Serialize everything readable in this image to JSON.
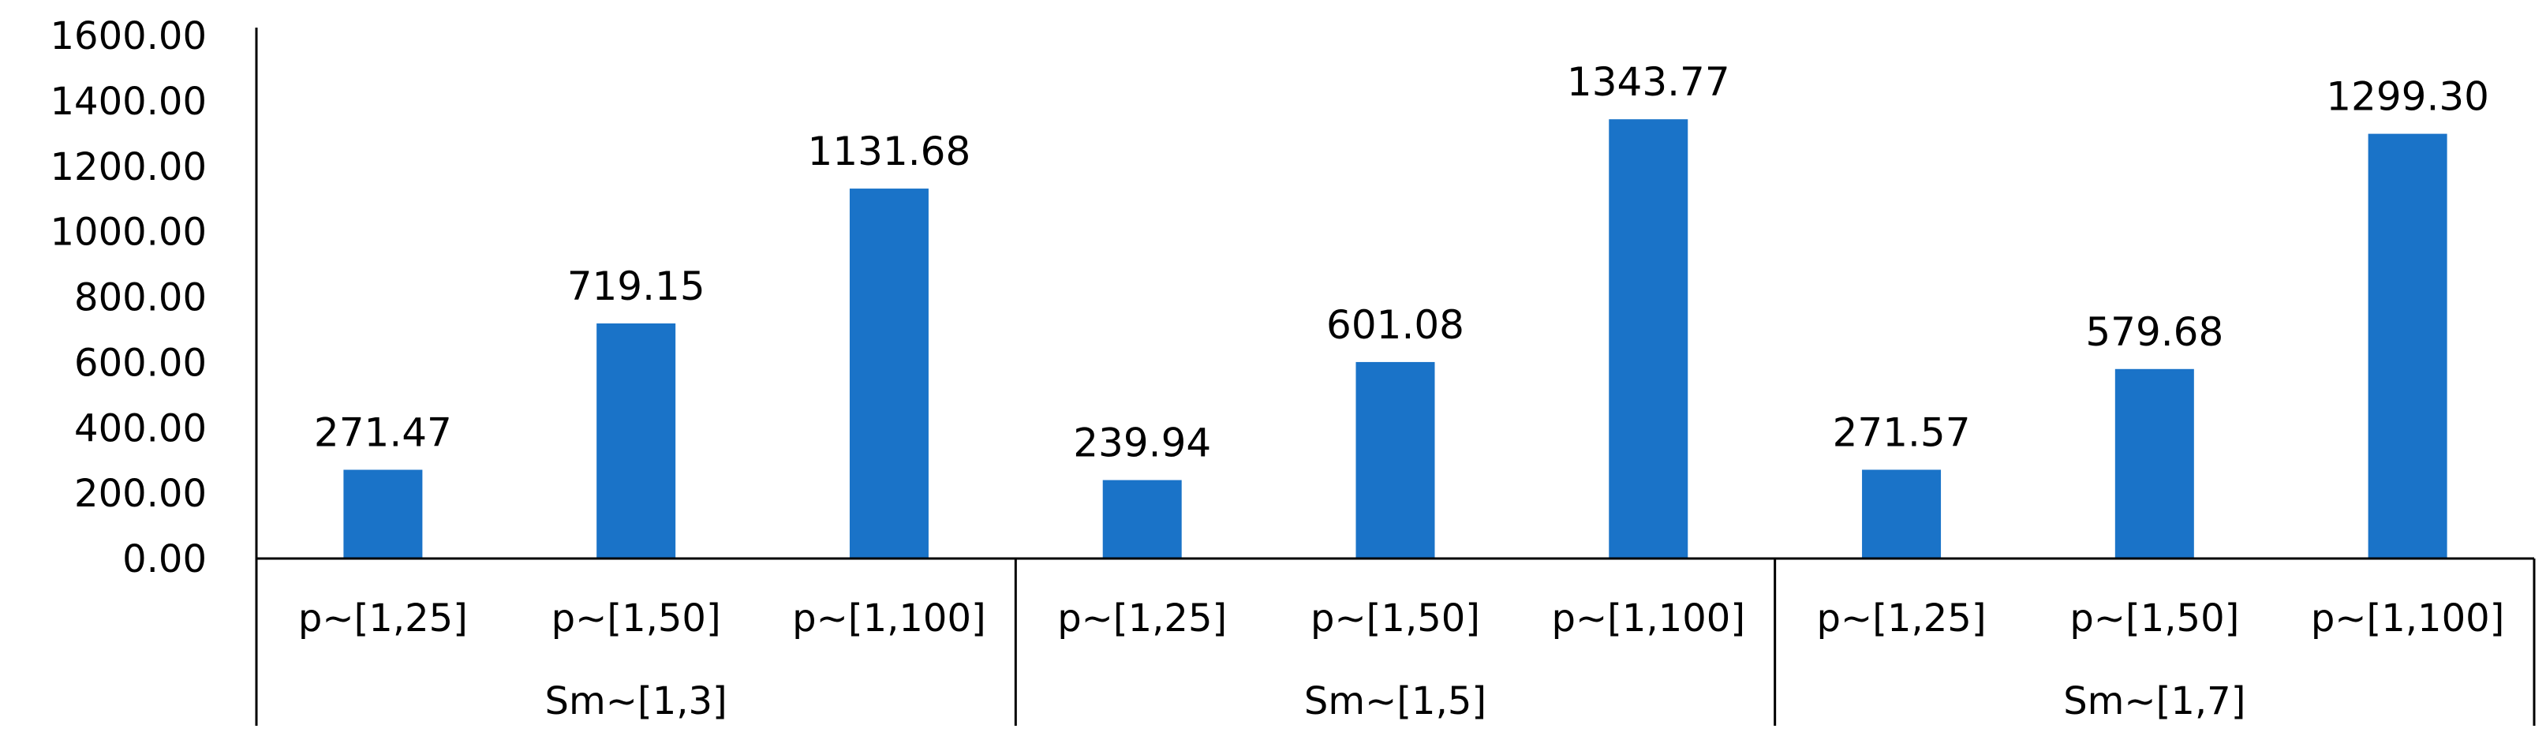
{
  "chart_data": {
    "type": "bar",
    "title": "",
    "xlabel": "",
    "ylabel": "",
    "ylim": [
      0,
      1600
    ],
    "yticks": [
      "0.00",
      "200.00",
      "400.00",
      "600.00",
      "800.00",
      "1000.00",
      "1200.00",
      "1400.00",
      "1600.00"
    ],
    "grid": false,
    "legend": "none",
    "bar_color": "#1A73C8",
    "groups": [
      {
        "name": "Sm~[1,3]",
        "categories": [
          "p~[1,25]",
          "p~[1,50]",
          "p~[1,100]"
        ],
        "values": [
          271.47,
          719.15,
          1131.68
        ],
        "labels": [
          "271.47",
          "719.15",
          "1131.68"
        ]
      },
      {
        "name": "Sm~[1,5]",
        "categories": [
          "p~[1,25]",
          "p~[1,50]",
          "p~[1,100]"
        ],
        "values": [
          239.94,
          601.08,
          1343.77
        ],
        "labels": [
          "239.94",
          "601.08",
          "1343.77"
        ]
      },
      {
        "name": "Sm~[1,7]",
        "categories": [
          "p~[1,25]",
          "p~[1,50]",
          "p~[1,100]"
        ],
        "values": [
          271.57,
          579.68,
          1299.3
        ],
        "labels": [
          "271.57",
          "579.68",
          "1299.30"
        ]
      }
    ]
  }
}
